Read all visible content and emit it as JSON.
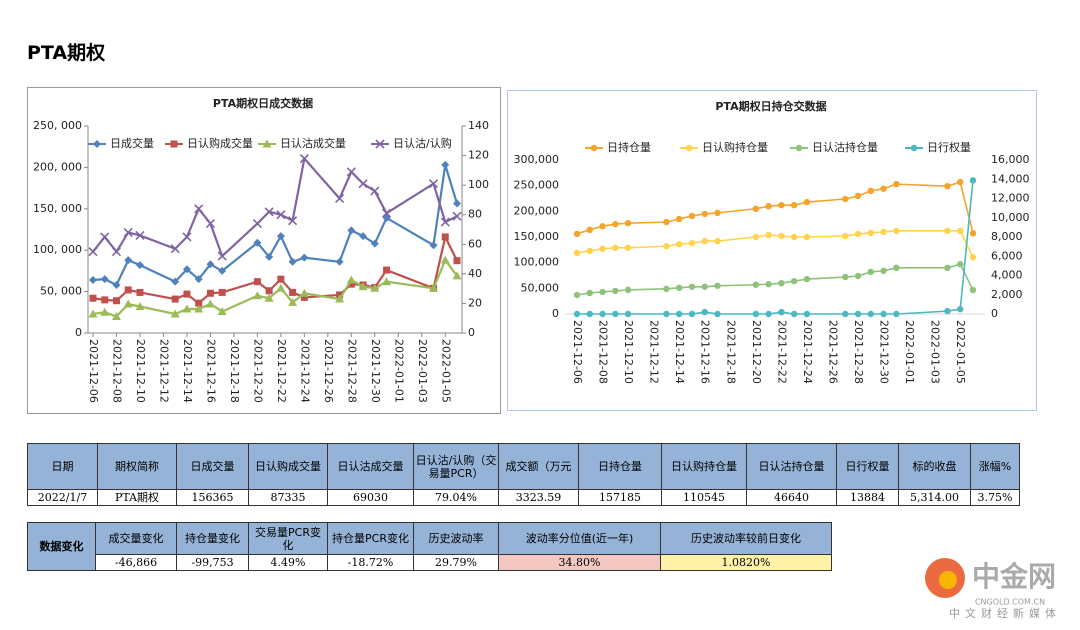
{
  "title": "PTA期权",
  "chart_data": [
    {
      "type": "line",
      "title": "PTA期权日成交数据",
      "legend": "top",
      "grid": false,
      "x": [
        "2021-12-06",
        "2021-12-07",
        "2021-12-08",
        "2021-12-09",
        "2021-12-10",
        "2021-12-13",
        "2021-12-14",
        "2021-12-15",
        "2021-12-16",
        "2021-12-17",
        "2021-12-20",
        "2021-12-21",
        "2021-12-22",
        "2021-12-23",
        "2021-12-24",
        "2021-12-27",
        "2021-12-28",
        "2021-12-29",
        "2021-12-30",
        "2021-12-31",
        "2022-01-04",
        "2022-01-05",
        "2022-01-06"
      ],
      "xlim": [
        "2021-12-06",
        "2022-01-06"
      ],
      "xticks": [
        "2021-12-06",
        "2021-12-08",
        "2021-12-10",
        "2021-12-12",
        "2021-12-14",
        "2021-12-16",
        "2021-12-18",
        "2021-12-20",
        "2021-12-22",
        "2021-12-24",
        "2021-12-26",
        "2021-12-28",
        "2021-12-30",
        "2022-01-01",
        "2022-01-03",
        "2022-01-05"
      ],
      "ylim": [
        0,
        250000
      ],
      "yticks": [
        0,
        {
          "value": 50000,
          "label": "50, 000"
        },
        {
          "value": 100000,
          "label": "100, 000"
        },
        {
          "value": 150000,
          "label": "150, 000"
        },
        {
          "value": 200000,
          "label": "200, 000"
        },
        {
          "value": 250000,
          "label": "250, 000"
        }
      ],
      "y2lim": [
        0,
        140
      ],
      "y2ticks": [
        0,
        20,
        40,
        60,
        80,
        100,
        120,
        140
      ],
      "series": [
        {
          "name": "日成交量",
          "color": "#4f81bd",
          "marker": "diamond",
          "values": [
            64000,
            65000,
            58000,
            88000,
            82000,
            62000,
            77000,
            65000,
            83000,
            75000,
            109000,
            92000,
            117000,
            86000,
            91000,
            86000,
            124000,
            117000,
            108000,
            139000,
            106000,
            203000,
            156365
          ]
        },
        {
          "name": "日认购成交量",
          "color": "#c0504d",
          "marker": "square",
          "values": [
            42000,
            40000,
            39000,
            52000,
            49000,
            41000,
            47000,
            36000,
            48000,
            49000,
            62000,
            51000,
            65000,
            49000,
            43000,
            46000,
            59000,
            58000,
            55000,
            76000,
            54000,
            116000,
            87335
          ]
        },
        {
          "name": "日认沽成交量",
          "color": "#9bbb59",
          "marker": "triangle",
          "values": [
            23000,
            25000,
            20000,
            35000,
            32000,
            23000,
            29000,
            29000,
            35000,
            26000,
            45000,
            42000,
            54000,
            37000,
            48000,
            41000,
            64000,
            56000,
            54000,
            62000,
            54000,
            88000,
            69030
          ]
        },
        {
          "name": "日认沽/认购",
          "color": "#8064a2",
          "marker": "x",
          "axis": "y2",
          "values": [
            55,
            65,
            55,
            68,
            66,
            57,
            65,
            84,
            74,
            52,
            74,
            82,
            80,
            76,
            118,
            91,
            109,
            101,
            96,
            81,
            101,
            75,
            79
          ]
        }
      ]
    },
    {
      "type": "line",
      "title": "PTA期权日持仓交数据",
      "legend": "top",
      "grid": false,
      "x": [
        "2021-12-06",
        "2021-12-07",
        "2021-12-08",
        "2021-12-09",
        "2021-12-10",
        "2021-12-13",
        "2021-12-14",
        "2021-12-15",
        "2021-12-16",
        "2021-12-17",
        "2021-12-20",
        "2021-12-21",
        "2021-12-22",
        "2021-12-23",
        "2021-12-24",
        "2021-12-27",
        "2021-12-28",
        "2021-12-29",
        "2021-12-30",
        "2021-12-31",
        "2022-01-04",
        "2022-01-05",
        "2022-01-06"
      ],
      "xlim": [
        "2021-12-06",
        "2022-01-06"
      ],
      "xticks": [
        "2021-12-06",
        "2021-12-08",
        "2021-12-10",
        "2021-12-12",
        "2021-12-14",
        "2021-12-16",
        "2021-12-18",
        "2021-12-20",
        "2021-12-22",
        "2021-12-24",
        "2021-12-26",
        "2021-12-28",
        "2021-12-30",
        "2022-01-01",
        "2022-01-03",
        "2022-01-05"
      ],
      "ylim": [
        0,
        300000
      ],
      "yticks": [
        0,
        {
          "value": 50000,
          "label": "50,000"
        },
        {
          "value": 100000,
          "label": "100,000"
        },
        {
          "value": 150000,
          "label": "150,000"
        },
        {
          "value": 200000,
          "label": "200,000"
        },
        {
          "value": 250000,
          "label": "250,000"
        },
        {
          "value": 300000,
          "label": "300,000"
        }
      ],
      "y2lim": [
        0,
        16000
      ],
      "y2ticks": [
        0,
        {
          "value": 2000,
          "label": "2,000"
        },
        {
          "value": 4000,
          "label": "4,000"
        },
        {
          "value": 6000,
          "label": "6,000"
        },
        {
          "value": 8000,
          "label": "8,000"
        },
        {
          "value": 10000,
          "label": "10,000"
        },
        {
          "value": 12000,
          "label": "12,000"
        },
        {
          "value": 14000,
          "label": "14,000"
        },
        {
          "value": 16000,
          "label": "16,000"
        }
      ],
      "series": [
        {
          "name": "日持仓量",
          "color": "#f5a32a",
          "marker": "circle",
          "values": [
            156000,
            164000,
            171000,
            175000,
            177000,
            179000,
            185000,
            191000,
            195000,
            197000,
            205000,
            210000,
            212000,
            212000,
            218000,
            224000,
            230000,
            240000,
            244000,
            253000,
            249000,
            257000,
            157185
          ]
        },
        {
          "name": "日认购持仓量",
          "color": "#ffd34d",
          "marker": "circle",
          "values": [
            119000,
            123000,
            127000,
            129000,
            129000,
            132000,
            136000,
            138000,
            142000,
            142000,
            150000,
            154000,
            152000,
            150000,
            150000,
            152000,
            156000,
            158000,
            160000,
            162000,
            162000,
            162000,
            110545
          ]
        },
        {
          "name": "日认沽持仓量",
          "color": "#8fc17a",
          "marker": "circle",
          "values": [
            37000,
            41000,
            43000,
            45000,
            47000,
            49000,
            51000,
            53000,
            53000,
            55000,
            57000,
            58000,
            60000,
            64000,
            68000,
            72000,
            74000,
            82000,
            84000,
            90000,
            90000,
            97000,
            46640
          ]
        },
        {
          "name": "日行权量",
          "color": "#4bb8c2",
          "marker": "circle",
          "axis": "y2",
          "values": [
            0,
            0,
            0,
            0,
            0,
            0,
            0,
            0,
            200,
            0,
            0,
            0,
            200,
            0,
            0,
            0,
            0,
            0,
            0,
            0,
            300,
            500,
            13884
          ]
        }
      ]
    }
  ],
  "table": {
    "header": [
      "日期",
      "期权简称",
      "日成交量",
      "日认购成交量",
      "日认沽成交量",
      "日认沽/认购（交易量PCR）",
      "成交额（万元",
      "日持仓量",
      "日认购持仓量",
      "日认沽持仓量",
      "日行权量",
      "标的收盘",
      "涨幅%"
    ],
    "rows": [
      [
        "2022/1/7",
        "PTA期权",
        "156365",
        "87335",
        "69030",
        "79.04%",
        "3323.59",
        "157185",
        "110545",
        "46640",
        "13884",
        "5,314.00",
        "3.75%"
      ]
    ]
  },
  "changes": {
    "label": "数据变化",
    "header": [
      "成交量变化",
      "持仓量变化",
      "交易量PCR变化",
      "持仓量PCR变化",
      "历史波动率",
      "波动率分位值(近一年)",
      "历史波动率较前日变化"
    ],
    "rows": [
      [
        "-46,866",
        "-99,753",
        "4.49%",
        "-18.72%",
        "29.79%",
        "34.80%",
        "1.0820%"
      ]
    ]
  },
  "watermark": {
    "name": "中金网",
    "site": "CNGOLD.COM.CN",
    "slogan": "中文财经新媒体"
  }
}
